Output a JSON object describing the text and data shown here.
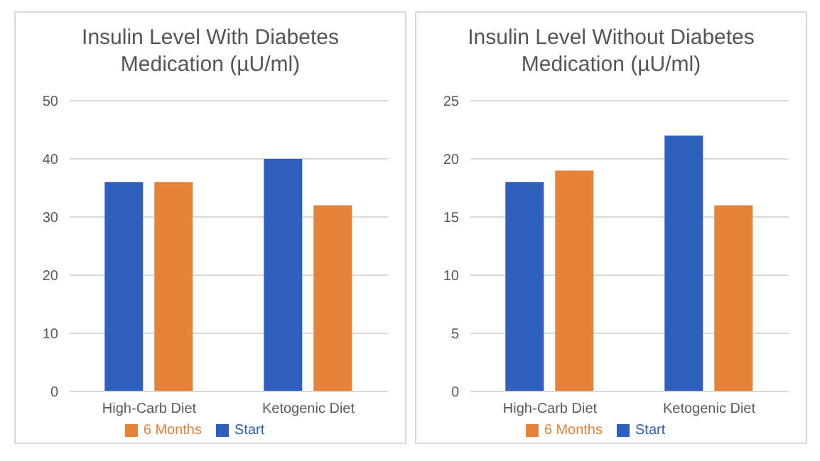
{
  "chart_data": [
    {
      "type": "bar",
      "title": "Insulin Level With Diabetes Medication (µU/ml)",
      "categories": [
        "High-Carb Diet",
        "Ketogenic Diet"
      ],
      "series": [
        {
          "name": "Start",
          "color": "#2e5fbd",
          "values": [
            36,
            40
          ]
        },
        {
          "name": "6 Months",
          "color": "#e6823a",
          "values": [
            36,
            32
          ]
        }
      ],
      "ylim": [
        0,
        50
      ],
      "yticks": [
        0,
        10,
        20,
        30,
        40,
        50
      ],
      "grid": "y",
      "legend": "bottom"
    },
    {
      "type": "bar",
      "title": "Insulin Level Without Diabetes Medication (µU/ml)",
      "categories": [
        "High-Carb Diet",
        "Ketogenic Diet"
      ],
      "series": [
        {
          "name": "Start",
          "color": "#2e5fbd",
          "values": [
            18,
            22
          ]
        },
        {
          "name": "6 Months",
          "color": "#e6823a",
          "values": [
            19,
            16
          ]
        }
      ],
      "ylim": [
        0,
        25
      ],
      "yticks": [
        0,
        5,
        10,
        15,
        20,
        25
      ],
      "grid": "y",
      "legend": "bottom"
    }
  ]
}
